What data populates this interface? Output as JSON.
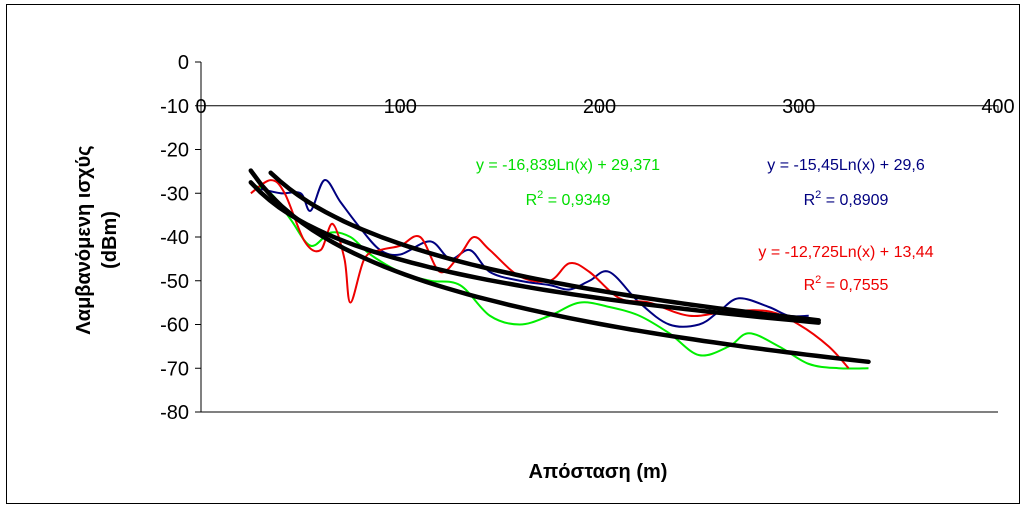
{
  "chart_data": {
    "type": "line",
    "xlabel": "Απόσταση (m)",
    "ylabel": [
      "Λαμβανόμενη ισχύς",
      "(dBm)"
    ],
    "xlim": [
      0,
      400
    ],
    "ylim": [
      -80,
      0
    ],
    "x_ticks": [
      0,
      100,
      200,
      300,
      400
    ],
    "y_ticks": [
      0,
      -10,
      -20,
      -30,
      -40,
      -50,
      -60,
      -70,
      -80
    ],
    "x_tick_labels": [
      "0",
      "100",
      "200",
      "300",
      "400"
    ],
    "y_tick_labels": [
      "0",
      "-10",
      "-20",
      "-30",
      "-40",
      "-50",
      "-60",
      "-70",
      "-80"
    ],
    "x_axis_position": "top at y=-10",
    "grid": false,
    "series": [
      {
        "color": "#00ee00",
        "x": [
          25,
          35,
          45,
          55,
          65,
          75,
          85,
          100,
          115,
          130,
          145,
          160,
          175,
          190,
          205,
          220,
          235,
          250,
          265,
          275,
          290,
          305,
          320,
          335
        ],
        "y": [
          -28,
          -30,
          -36,
          -42,
          -39,
          -40,
          -44,
          -48,
          -50,
          -51,
          -58,
          -60,
          -58,
          -55,
          -56,
          -58,
          -62,
          -67,
          -65,
          -62,
          -65,
          -69,
          -70,
          -70
        ]
      },
      {
        "color": "#000080",
        "x": [
          30,
          40,
          50,
          55,
          62,
          70,
          80,
          90,
          100,
          115,
          125,
          135,
          145,
          160,
          175,
          185,
          195,
          205,
          220,
          235,
          250,
          260,
          270,
          285,
          295,
          305
        ],
        "y": [
          -29,
          -30,
          -30,
          -34,
          -27,
          -32,
          -38,
          -43,
          -44,
          -41,
          -45,
          -43,
          -48,
          -50,
          -51,
          -52,
          -50,
          -48,
          -55,
          -60,
          -60,
          -57,
          -54,
          -56,
          -58,
          -58
        ]
      },
      {
        "color": "#ee0000",
        "x": [
          25,
          35,
          42,
          52,
          60,
          66,
          72,
          75,
          82,
          90,
          100,
          110,
          120,
          130,
          137,
          145,
          160,
          175,
          185,
          195,
          210,
          225,
          245,
          265,
          285,
          300,
          315,
          325
        ],
        "y": [
          -30,
          -27,
          -30,
          -41,
          -43,
          -37,
          -45,
          -55,
          -45,
          -43,
          -42,
          -40,
          -48,
          -44,
          -40,
          -43,
          -49,
          -50,
          -46,
          -48,
          -54,
          -55,
          -58,
          -57,
          -57,
          -60,
          -65,
          -70
        ]
      }
    ],
    "trendlines": [
      {
        "equation": "y = -16,839Ln(x) + 29,371",
        "r2_label": "R",
        "r2_value": " = 0,9349",
        "color": "#00dd00",
        "a": -16.839,
        "b": 29.371,
        "x_range": [
          25,
          335
        ]
      },
      {
        "equation": "y = -15,45Ln(x) + 29,6",
        "r2_label": "R",
        "r2_value": " = 0,8909",
        "color": "#000080",
        "a": -15.45,
        "b": 29.6,
        "x_range": [
          35,
          310
        ]
      },
      {
        "equation": "y = -12,725Ln(x) + 13,44",
        "r2_label": "R",
        "r2_value": " = 0,7555",
        "color": "#ee0000",
        "a": -12.725,
        "b": 13.44,
        "x_range": [
          25,
          310
        ]
      }
    ]
  }
}
